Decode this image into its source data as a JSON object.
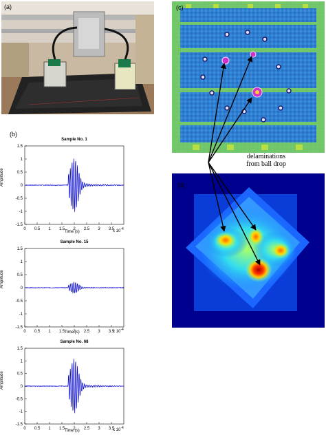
{
  "panels": {
    "a": "(a)",
    "b": "(b)",
    "c": "(c)",
    "d": "(d)"
  },
  "annotation": {
    "line1": "delaminations",
    "line2": "from ball drop"
  },
  "plots": [
    {
      "title": "Sample No. 1",
      "ylabel": "Amplitude",
      "xlabel": "Time (s)",
      "exponent": "x 10",
      "exponent_power": "-4",
      "yticks": [
        "1.5",
        "1",
        "0.5",
        "0",
        "-0.5",
        "-1",
        "-1.5"
      ],
      "xticks": [
        "0",
        "0.5",
        "1",
        "1.5",
        "2",
        "2.5",
        "3",
        "3.5"
      ],
      "burst_amp": 0.95
    },
    {
      "title": "Sample No. 15",
      "ylabel": "Amplitude",
      "xlabel": "Time (s)",
      "exponent": "x 10",
      "exponent_power": "-4",
      "yticks": [
        "1.5",
        "1",
        "0.5",
        "0",
        "-0.5",
        "-1",
        "-1.5"
      ],
      "xticks": [
        "0",
        "0.5",
        "1",
        "1.5",
        "2",
        "2.5",
        "3",
        "3.5"
      ],
      "burst_amp": 0.2
    },
    {
      "title": "Sample No. 68",
      "ylabel": "Amplitude",
      "xlabel": "Time (s)",
      "exponent": "x 10",
      "exponent_power": "-4",
      "yticks": [
        "1.5",
        "1",
        "0.5",
        "0",
        "-0.5",
        "-1",
        "-1.5"
      ],
      "xticks": [
        "0",
        "0.5",
        "1",
        "1.5",
        "2",
        "2.5",
        "3",
        "3.5"
      ],
      "burst_amp": 1.0
    }
  ],
  "colors": {
    "signal": "#0000cc",
    "ct_bg": "#2a7fd4",
    "heat_bg": "#00008f"
  }
}
